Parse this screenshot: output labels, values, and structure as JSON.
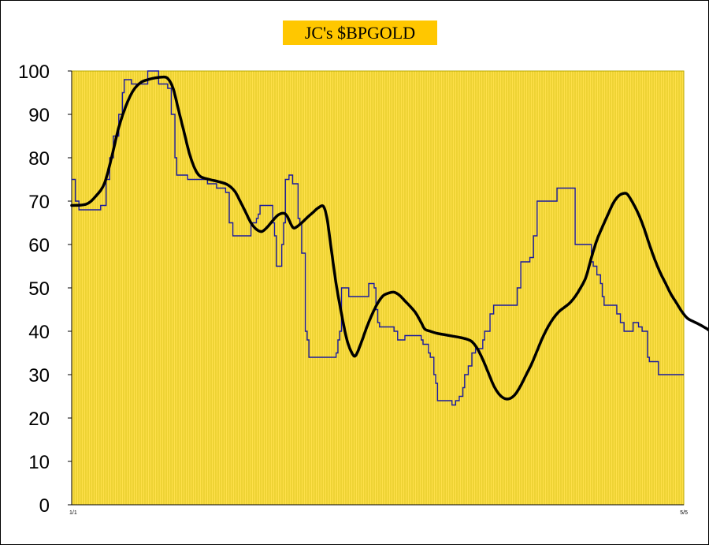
{
  "chart_data": {
    "type": "line",
    "title": "JC's $BPGOLD",
    "ylim": [
      0,
      100
    ],
    "yticks": [
      0,
      10,
      20,
      30,
      40,
      50,
      60,
      70,
      80,
      90,
      100
    ],
    "x_first_label": "1/1",
    "x_last_label": "5/5",
    "grid": "vertical",
    "colors": {
      "plot_bg": "#FFE04A",
      "grid": "#C8B400",
      "title_bg": "#FFC700",
      "bpgold": "#1A1AA0",
      "smoothed": "#000000"
    },
    "series": [
      {
        "style": "thin-step",
        "color": "#1A1AA0",
        "values": [
          75,
          75,
          70,
          70,
          68,
          68,
          68,
          68,
          68,
          68,
          68,
          68,
          68,
          68,
          68,
          68,
          69,
          69,
          69,
          75,
          75,
          80,
          80,
          85,
          85,
          85,
          90,
          90,
          95,
          98,
          98,
          98,
          98,
          97,
          97,
          97,
          97,
          97,
          97,
          97,
          97,
          97,
          100,
          100,
          100,
          100,
          100,
          100,
          97,
          97,
          97,
          97,
          97,
          96,
          96,
          90,
          90,
          80,
          76,
          76,
          76,
          76,
          76,
          76,
          75,
          75,
          75,
          75,
          75,
          75,
          75,
          75,
          75,
          75,
          75,
          74,
          74,
          74,
          74,
          74,
          73,
          73,
          73,
          73,
          73,
          72,
          72,
          65,
          65,
          62,
          62,
          62,
          62,
          62,
          62,
          62,
          62,
          62,
          62,
          65,
          65,
          65,
          66,
          67,
          69,
          69,
          69,
          69,
          69,
          69,
          69,
          65,
          62,
          55,
          55,
          55,
          60,
          65,
          75,
          75,
          76,
          76,
          74,
          74,
          74,
          66,
          65,
          58,
          58,
          40,
          38,
          34,
          34,
          34,
          34,
          34,
          34,
          34,
          34,
          34,
          34,
          34,
          34,
          34,
          34,
          34,
          35,
          38,
          40,
          50,
          50,
          50,
          50,
          48,
          48,
          48,
          48,
          48,
          48,
          48,
          48,
          48,
          48,
          48,
          51,
          51,
          51,
          50,
          45,
          42,
          41,
          41,
          41,
          41,
          41,
          41,
          41,
          41,
          40,
          40,
          38,
          38,
          38,
          38,
          39,
          39,
          39,
          39,
          39,
          39,
          39,
          39,
          39,
          38,
          37,
          37,
          37,
          35,
          34,
          34,
          30,
          28,
          24,
          24,
          24,
          24,
          24,
          24,
          24,
          24,
          23,
          23,
          24,
          24,
          25,
          25,
          27,
          30,
          30,
          32,
          32,
          35,
          35,
          36,
          36,
          36,
          36,
          38,
          40,
          40,
          40,
          44,
          44,
          46,
          46,
          46,
          46,
          46,
          46,
          46,
          46,
          46,
          46,
          46,
          46,
          46,
          50,
          50,
          56,
          56,
          56,
          56,
          56,
          57,
          57,
          62,
          62,
          70,
          70,
          70,
          70,
          70,
          70,
          70,
          70,
          70,
          70,
          70,
          73,
          73,
          73,
          73,
          73,
          73,
          73,
          73,
          73,
          73,
          60,
          60,
          60,
          60,
          60,
          60,
          60,
          60,
          60,
          56,
          55,
          55,
          53,
          53,
          51,
          48,
          46,
          46,
          46,
          46,
          46,
          46,
          46,
          44,
          44,
          42,
          42,
          40,
          40,
          40,
          40,
          40,
          42,
          42,
          42,
          41,
          41,
          40,
          40,
          40,
          34,
          33,
          33,
          33,
          33,
          33,
          30,
          30,
          30,
          30,
          30,
          30,
          30,
          30,
          30,
          30,
          30,
          30,
          30,
          30,
          30
        ]
      },
      {
        "style": "thick-smoothed",
        "color": "#000000",
        "points": [
          [
            0,
            69
          ],
          [
            8,
            69.3
          ],
          [
            13,
            71
          ],
          [
            18,
            74
          ],
          [
            22,
            80
          ],
          [
            26,
            87
          ],
          [
            30,
            92
          ],
          [
            34,
            95.5
          ],
          [
            38,
            97.3
          ],
          [
            42,
            98
          ],
          [
            46,
            98.4
          ],
          [
            50,
            98.6
          ],
          [
            53,
            98.3
          ],
          [
            56,
            96
          ],
          [
            59,
            91
          ],
          [
            62,
            86
          ],
          [
            65,
            81
          ],
          [
            68,
            77.5
          ],
          [
            71,
            75.7
          ],
          [
            76,
            75
          ],
          [
            81,
            74.5
          ],
          [
            86,
            73.8
          ],
          [
            90,
            72.3
          ],
          [
            93,
            70
          ],
          [
            96,
            67.5
          ],
          [
            99,
            65
          ],
          [
            102,
            63.5
          ],
          [
            105,
            63
          ],
          [
            108,
            64
          ],
          [
            111,
            65.5
          ],
          [
            114,
            66.8
          ],
          [
            117,
            67.2
          ],
          [
            119,
            66.5
          ],
          [
            122,
            64
          ],
          [
            124,
            64
          ],
          [
            127,
            65
          ],
          [
            130,
            66.2
          ],
          [
            133,
            67.3
          ],
          [
            136,
            68.4
          ],
          [
            139,
            68.8
          ],
          [
            141,
            66
          ],
          [
            143,
            60
          ],
          [
            146,
            51
          ],
          [
            149,
            44
          ],
          [
            152,
            38
          ],
          [
            155,
            34.8
          ],
          [
            157,
            34.5
          ],
          [
            160,
            37.5
          ],
          [
            163,
            41
          ],
          [
            166,
            44
          ],
          [
            169,
            46.5
          ],
          [
            172,
            48.2
          ],
          [
            175,
            48.8
          ],
          [
            178,
            49
          ],
          [
            181,
            48.3
          ],
          [
            184,
            47
          ],
          [
            187,
            45.7
          ],
          [
            190,
            44.2
          ],
          [
            193,
            42
          ],
          [
            195,
            40.5
          ],
          [
            198,
            40
          ],
          [
            202,
            39.5
          ],
          [
            206,
            39.2
          ],
          [
            210,
            38.9
          ],
          [
            214,
            38.6
          ],
          [
            218,
            38.2
          ],
          [
            221,
            37.6
          ],
          [
            224,
            36
          ],
          [
            227,
            33.5
          ],
          [
            230,
            30.5
          ],
          [
            233,
            27.5
          ],
          [
            236,
            25.5
          ],
          [
            239,
            24.5
          ],
          [
            242,
            24.5
          ],
          [
            245,
            25.5
          ],
          [
            248,
            27.5
          ],
          [
            251,
            30
          ],
          [
            254,
            32.5
          ],
          [
            257,
            35.5
          ],
          [
            260,
            38.5
          ],
          [
            263,
            41
          ],
          [
            266,
            43
          ],
          [
            269,
            44.5
          ],
          [
            272,
            45.5
          ],
          [
            275,
            46.5
          ],
          [
            278,
            48
          ],
          [
            281,
            50
          ],
          [
            284,
            52.5
          ],
          [
            287,
            57
          ],
          [
            290,
            61
          ],
          [
            293,
            64
          ],
          [
            296,
            66.8
          ],
          [
            299,
            69.5
          ],
          [
            302,
            71.2
          ],
          [
            305,
            71.8
          ],
          [
            307,
            71.5
          ],
          [
            310,
            69.5
          ],
          [
            313,
            67
          ],
          [
            316,
            63.8
          ],
          [
            319,
            60
          ],
          [
            322,
            56.5
          ],
          [
            325,
            53.5
          ],
          [
            328,
            51
          ],
          [
            331,
            48.5
          ],
          [
            334,
            46.5
          ],
          [
            337,
            44.5
          ],
          [
            340,
            43
          ],
          [
            343,
            42.3
          ],
          [
            346,
            41.7
          ],
          [
            349,
            41
          ],
          [
            352,
            40.2
          ],
          [
            355,
            38.7
          ],
          [
            358,
            36.5
          ],
          [
            361,
            34
          ],
          [
            364,
            32
          ],
          [
            367,
            30.6
          ],
          [
            370,
            30
          ]
        ]
      }
    ]
  }
}
